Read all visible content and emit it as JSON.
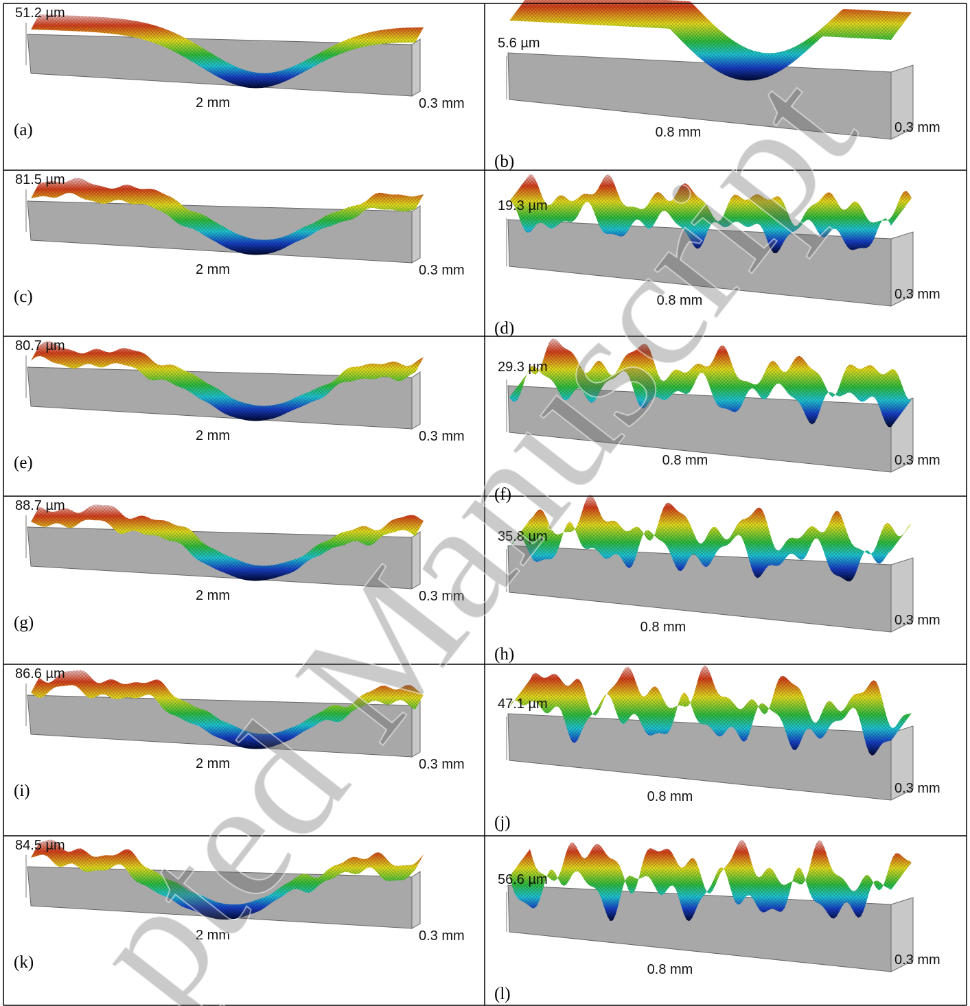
{
  "figure": {
    "panels": [
      {
        "label": "(a)",
        "height": "51.2 µm",
        "length": "2 mm",
        "width": "0.3 mm"
      },
      {
        "label": "(b)",
        "height": "5.6 µm",
        "length": "0.8 mm",
        "width": "0.3 mm"
      },
      {
        "label": "(c)",
        "height": "81.5 µm",
        "length": "2 mm",
        "width": "0.3 mm"
      },
      {
        "label": "(d)",
        "height": "19.3 µm",
        "length": "0.8 mm",
        "width": "0.3 mm"
      },
      {
        "label": "(e)",
        "height": "80.7 µm",
        "length": "2 mm",
        "width": "0.3 mm"
      },
      {
        "label": "(f)",
        "height": "29.3 µm",
        "length": "0.8 mm",
        "width": "0.3 mm"
      },
      {
        "label": "(g)",
        "height": "88.7 µm",
        "length": "2 mm",
        "width": "0.3 mm"
      },
      {
        "label": "(h)",
        "height": "35.8 µm",
        "length": "0.8 mm",
        "width": "0.3 mm"
      },
      {
        "label": "(i)",
        "height": "86.6 µm",
        "length": "2 mm",
        "width": "0.3 mm"
      },
      {
        "label": "(j)",
        "height": "47.1 µm",
        "length": "0.8 mm",
        "width": "0.3 mm"
      },
      {
        "label": "(k)",
        "height": "84.5 µm",
        "length": "2 mm",
        "width": "0.3 mm"
      },
      {
        "label": "(l)",
        "height": "56.6 µm",
        "length": "0.8 mm",
        "width": "0.3 mm"
      }
    ]
  },
  "watermark": "pted Manuscript"
}
